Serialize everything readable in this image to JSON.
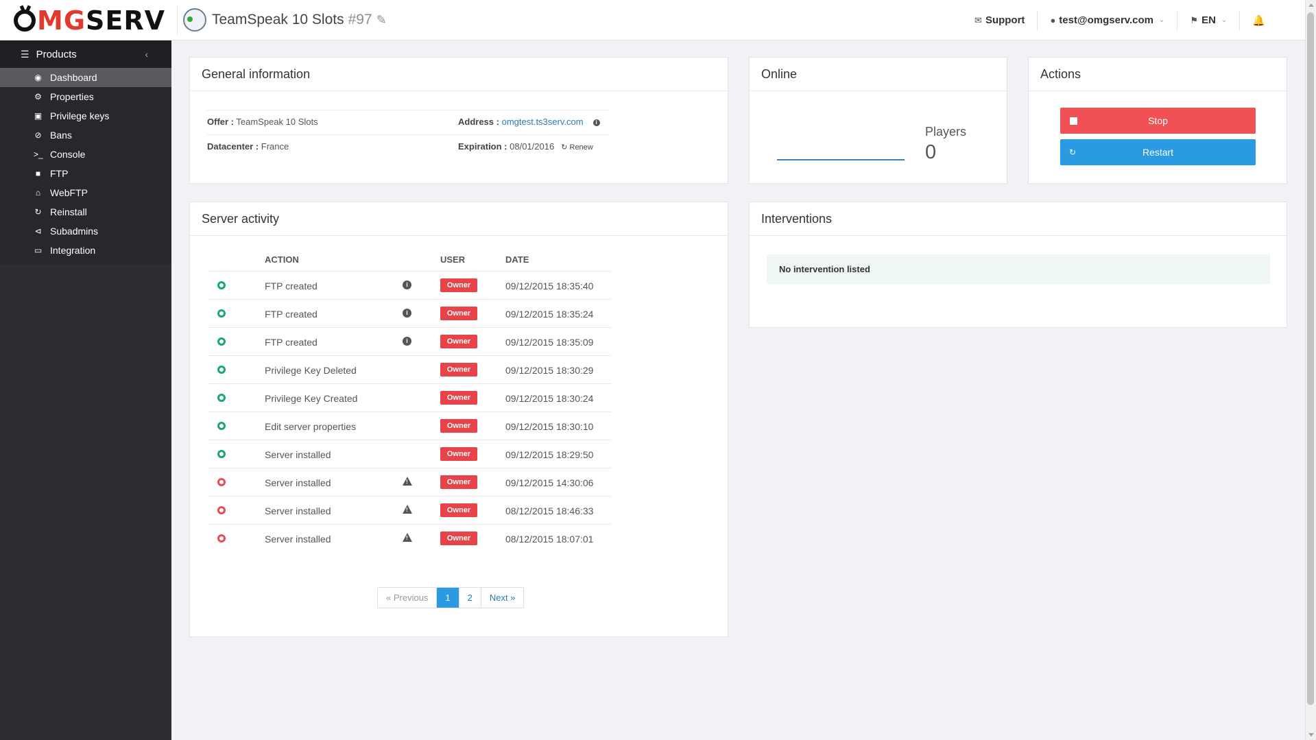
{
  "brand": {
    "logo_prefix": "O",
    "logo_g": "MG",
    "logo_rest": "SERV"
  },
  "server": {
    "title": "TeamSpeak 10 Slots",
    "number": "#97"
  },
  "topnav": {
    "support": "Support",
    "user": "test@omgserv.com",
    "lang": "EN"
  },
  "sidebar": {
    "header": "Products",
    "items": [
      {
        "label": "Dashboard",
        "icon": "dashboard-icon",
        "active": true
      },
      {
        "label": "Properties",
        "icon": "gear-icon"
      },
      {
        "label": "Privilege keys",
        "icon": "lock-icon"
      },
      {
        "label": "Bans",
        "icon": "ban-icon"
      },
      {
        "label": "Console",
        "icon": "terminal-icon"
      },
      {
        "label": "FTP",
        "icon": "folder-icon"
      },
      {
        "label": "WebFTP",
        "icon": "sitemap-icon"
      },
      {
        "label": "Reinstall",
        "icon": "refresh-icon"
      },
      {
        "label": "Subadmins",
        "icon": "share-icon"
      },
      {
        "label": "Integration",
        "icon": "desktop-icon"
      }
    ]
  },
  "general": {
    "title": "General information",
    "offer_label": "Offer :",
    "offer_value": "TeamSpeak 10 Slots",
    "address_label": "Address :",
    "address_value": "omgtest.ts3serv.com",
    "datacenter_label": "Datacenter :",
    "datacenter_value": "France",
    "expiration_label": "Expiration :",
    "expiration_value": "08/01/2016",
    "renew": "Renew"
  },
  "online": {
    "title": "Online",
    "players_label": "Players",
    "players_count": "0"
  },
  "actions": {
    "title": "Actions",
    "stop": "Stop",
    "restart": "Restart"
  },
  "activity": {
    "title": "Server activity",
    "headers": {
      "action": "ACTION",
      "user": "USER",
      "date": "DATE"
    },
    "rows": [
      {
        "action": "FTP created",
        "user": "Owner",
        "date": "09/12/2015 18:35:40",
        "status": "ok",
        "flag": "info"
      },
      {
        "action": "FTP created",
        "user": "Owner",
        "date": "09/12/2015 18:35:24",
        "status": "ok",
        "flag": "info"
      },
      {
        "action": "FTP created",
        "user": "Owner",
        "date": "09/12/2015 18:35:09",
        "status": "ok",
        "flag": "info"
      },
      {
        "action": "Privilege Key Deleted",
        "user": "Owner",
        "date": "09/12/2015 18:30:29",
        "status": "ok",
        "flag": ""
      },
      {
        "action": "Privilege Key Created",
        "user": "Owner",
        "date": "09/12/2015 18:30:24",
        "status": "ok",
        "flag": ""
      },
      {
        "action": "Edit server properties",
        "user": "Owner",
        "date": "09/12/2015 18:30:10",
        "status": "ok",
        "flag": ""
      },
      {
        "action": "Server installed",
        "user": "Owner",
        "date": "09/12/2015 18:29:50",
        "status": "ok",
        "flag": ""
      },
      {
        "action": "Server installed",
        "user": "Owner",
        "date": "09/12/2015 14:30:06",
        "status": "error",
        "flag": "warning"
      },
      {
        "action": "Server installed",
        "user": "Owner",
        "date": "08/12/2015 18:46:33",
        "status": "error",
        "flag": "warning"
      },
      {
        "action": "Server installed",
        "user": "Owner",
        "date": "08/12/2015 18:07:01",
        "status": "error",
        "flag": "warning"
      }
    ],
    "pager": {
      "prev": "« Previous",
      "pages": [
        "1",
        "2"
      ],
      "current": "1",
      "next": "Next »"
    }
  },
  "interventions": {
    "title": "Interventions",
    "empty": "No intervention listed"
  },
  "colors": {
    "accent": "#2a9ae3",
    "danger": "#ef5155",
    "ok": "#1aa57e",
    "sidebar": "#2d2e33"
  }
}
